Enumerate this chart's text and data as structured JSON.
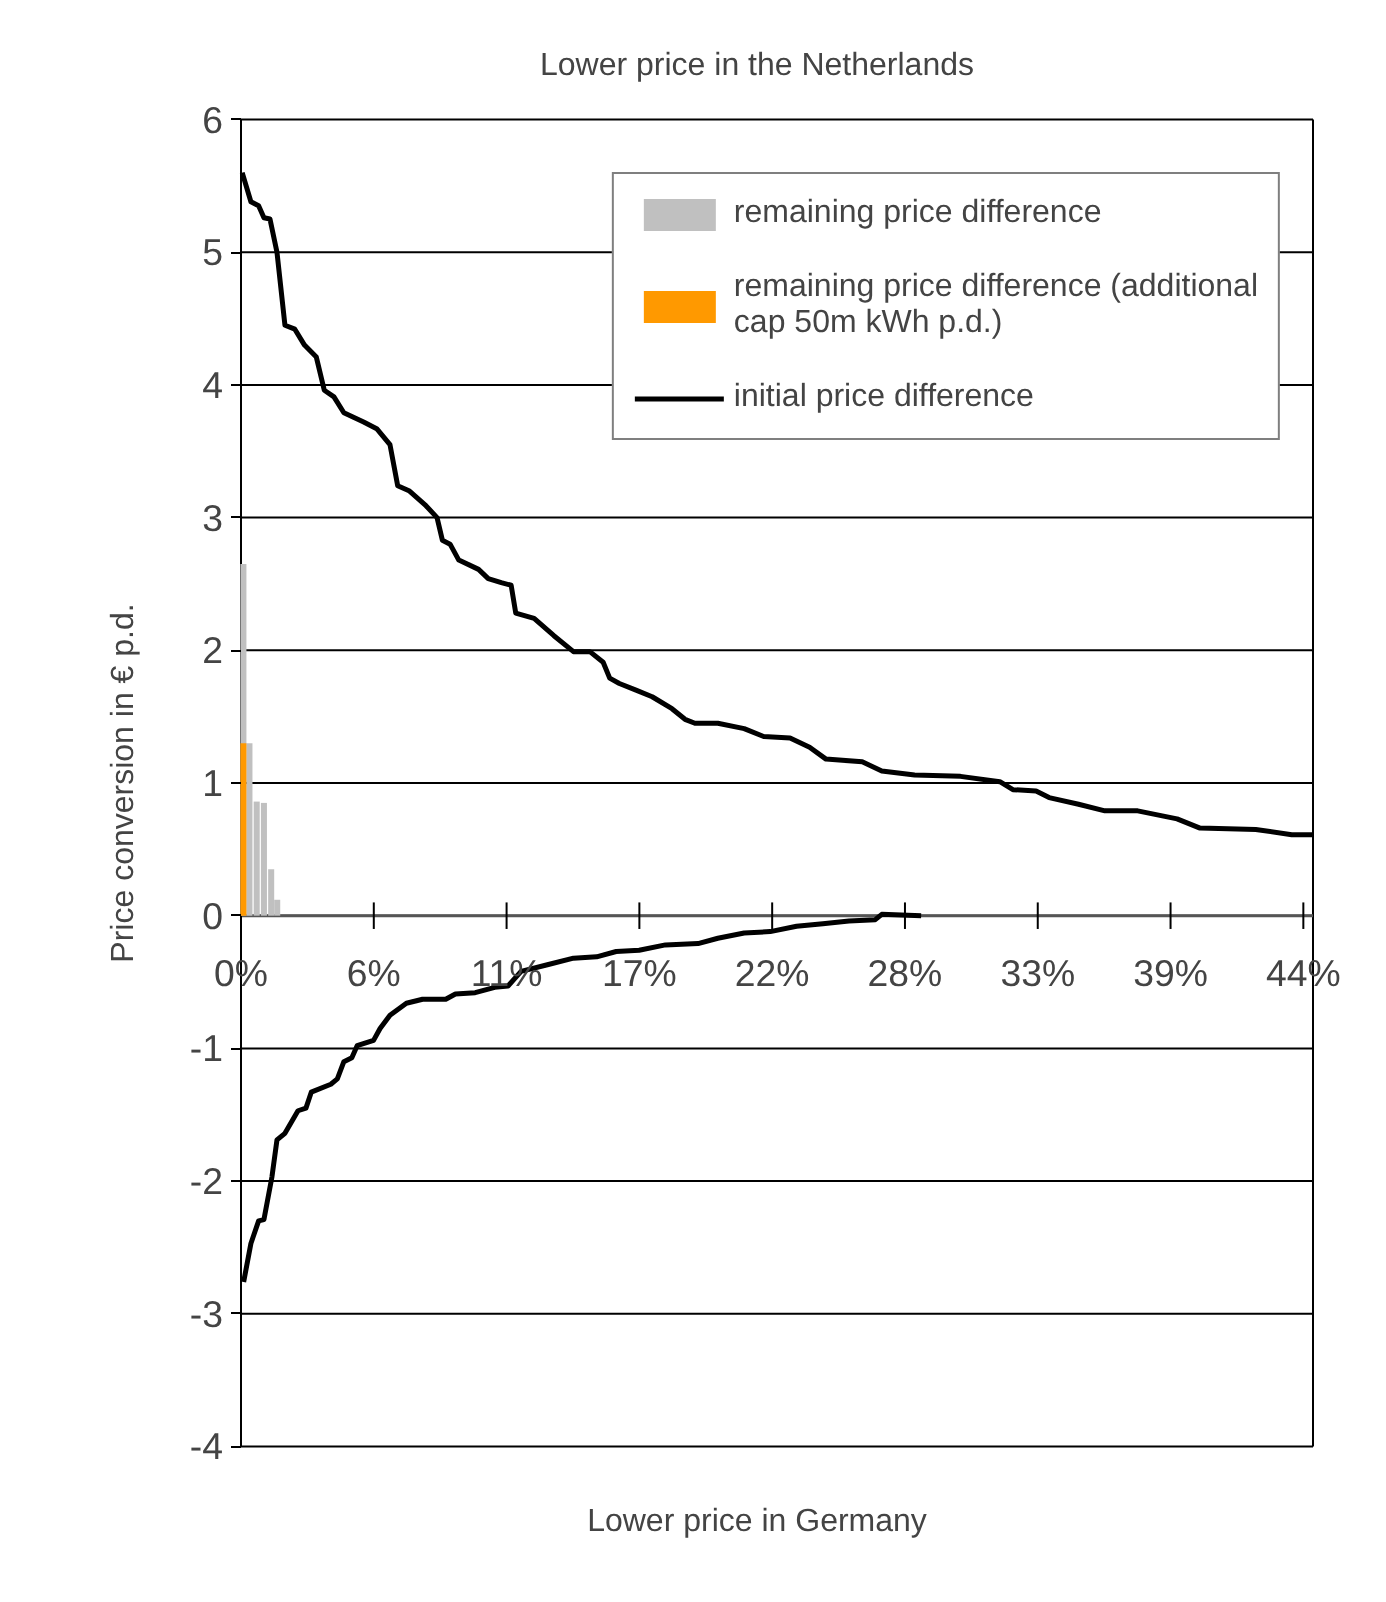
{
  "chart_data": {
    "type": "line",
    "title": "Lower price in the Netherlands",
    "xlabel": "Lower price in Germany",
    "ylabel": "Price conversion in € p.d.",
    "xlim": [
      0,
      44.4
    ],
    "ylim": [
      -4,
      6
    ],
    "xticks": [
      {
        "value": 0,
        "label": "0%"
      },
      {
        "value": 5.5,
        "label": "6%"
      },
      {
        "value": 11,
        "label": "11%"
      },
      {
        "value": 16.5,
        "label": "17%"
      },
      {
        "value": 22,
        "label": "22%"
      },
      {
        "value": 27.5,
        "label": "28%"
      },
      {
        "value": 33,
        "label": "33%"
      },
      {
        "value": 38.5,
        "label": "39%"
      },
      {
        "value": 44,
        "label": "44%"
      }
    ],
    "yticks": [
      -4,
      -3,
      -2,
      -1,
      0,
      1,
      2,
      3,
      4,
      5,
      6
    ],
    "grid": "y",
    "legend": "top right",
    "marker": "none",
    "line_style": "solid",
    "series": [
      {
        "name": "remaining price difference",
        "type": "bar",
        "color": "#c0c0c0",
        "x": [
          0.1,
          0.35,
          0.65,
          0.95,
          1.25,
          1.5
        ],
        "values": [
          2.65,
          1.3,
          0.86,
          0.85,
          0.35,
          0.12
        ]
      },
      {
        "name": "remaining price difference (additional cap 50m kWh p.d.)",
        "type": "bar",
        "color": "#ff9900",
        "x": [
          0.1
        ],
        "values": [
          1.3
        ]
      },
      {
        "name": "initial price difference",
        "color": "#000000",
        "x": [
          0.05,
          0.41,
          0.73,
          0.95,
          1.2,
          1.49,
          1.82,
          2.23,
          2.63,
          3.12,
          3.45,
          3.85,
          4.26,
          5.08,
          5.62,
          6.17,
          6.49,
          6.98,
          7.66,
          8.12,
          8.34,
          8.66,
          9.02,
          9.84,
          10.24,
          10.78,
          11.19,
          11.38,
          12.14,
          12.96,
          13.77,
          14.45,
          15.0,
          15.27,
          15.67,
          16.36,
          17.03,
          17.85,
          18.39,
          18.8,
          19.75,
          20.84,
          21.65,
          22.74,
          23.55,
          24.23,
          25.73,
          26.54,
          27.9,
          29.8,
          31.43,
          31.97,
          32.93,
          33.47,
          34.69,
          35.78,
          37.14,
          38.77,
          39.72,
          42.03,
          43.52,
          44.4
        ],
        "values": [
          5.6,
          5.38,
          5.35,
          5.26,
          5.25,
          5.0,
          4.45,
          4.42,
          4.3,
          4.21,
          3.96,
          3.91,
          3.79,
          3.72,
          3.67,
          3.55,
          3.24,
          3.2,
          3.09,
          3.0,
          2.83,
          2.8,
          2.68,
          2.61,
          2.54,
          2.51,
          2.49,
          2.28,
          2.24,
          2.11,
          1.99,
          1.99,
          1.91,
          1.79,
          1.75,
          1.7,
          1.65,
          1.56,
          1.48,
          1.45,
          1.45,
          1.41,
          1.35,
          1.34,
          1.27,
          1.18,
          1.16,
          1.09,
          1.06,
          1.05,
          1.01,
          0.95,
          0.94,
          0.89,
          0.84,
          0.79,
          0.79,
          0.73,
          0.66,
          0.65,
          0.61,
          0.61
        ]
      },
      {
        "color": "#000000",
        "x": [
          0.11,
          0.41,
          0.73,
          0.95,
          1.28,
          1.49,
          1.82,
          2.36,
          2.69,
          2.91,
          3.72,
          3.99,
          4.26,
          4.59,
          4.81,
          5.49,
          5.76,
          6.17,
          6.85,
          7.52,
          8.48,
          8.88,
          9.7,
          10.51,
          11.06,
          11.6,
          12.69,
          13.77,
          14.73,
          15.54,
          16.49,
          17.58,
          18.93,
          19.75,
          20.84,
          21.92,
          23.01,
          24.1,
          25.18,
          26.27,
          26.54,
          28.17
        ],
        "values": [
          -2.76,
          -2.47,
          -2.3,
          -2.29,
          -1.97,
          -1.69,
          -1.64,
          -1.47,
          -1.45,
          -1.33,
          -1.27,
          -1.23,
          -1.1,
          -1.07,
          -0.98,
          -0.94,
          -0.85,
          -0.75,
          -0.66,
          -0.63,
          -0.63,
          -0.59,
          -0.58,
          -0.54,
          -0.53,
          -0.42,
          -0.37,
          -0.32,
          -0.31,
          -0.27,
          -0.26,
          -0.22,
          -0.21,
          -0.17,
          -0.13,
          -0.12,
          -0.08,
          -0.06,
          -0.04,
          -0.03,
          0.01,
          0.0
        ]
      }
    ]
  }
}
